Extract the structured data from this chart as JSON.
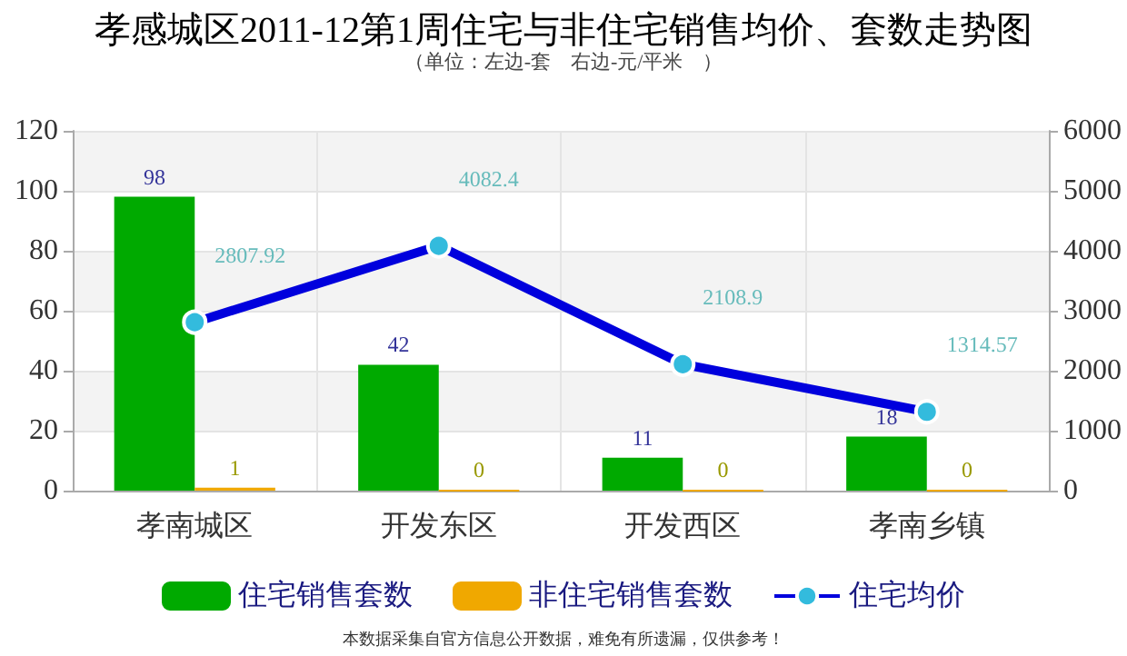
{
  "chart_data": {
    "type": "bar",
    "title": "孝感城区2011-12第1周住宅与非住宅销售均价、套数走势图",
    "subtitle": "（单位：左边-套　右边-元/平米　）",
    "categories": [
      "孝南城区",
      "开发东区",
      "开发西区",
      "孝南乡镇"
    ],
    "series": [
      {
        "name": "住宅销售套数",
        "color": "#00aa00",
        "values": [
          98,
          42,
          11,
          18
        ]
      },
      {
        "name": "非住宅销售套数",
        "color": "#f0a800",
        "values": [
          1,
          0,
          0,
          0
        ]
      },
      {
        "name": "住宅均价",
        "type": "line",
        "axis": "y2",
        "color": "#0000dd",
        "values": [
          2807.92,
          4082.4,
          2108.9,
          1314.57
        ]
      }
    ],
    "ylim": [
      0,
      120
    ],
    "yticks": [
      0,
      20,
      40,
      60,
      80,
      100,
      120
    ],
    "y2lim": [
      0,
      6000
    ],
    "y2ticks": [
      0,
      1000,
      2000,
      3000,
      4000,
      5000,
      6000
    ],
    "data_labels": true,
    "grid": true,
    "legend": "bottom",
    "marker": "circle",
    "annotations": [
      "本数据采集自官方信息公开数据，难免有所遗漏，仅供参考！"
    ]
  }
}
